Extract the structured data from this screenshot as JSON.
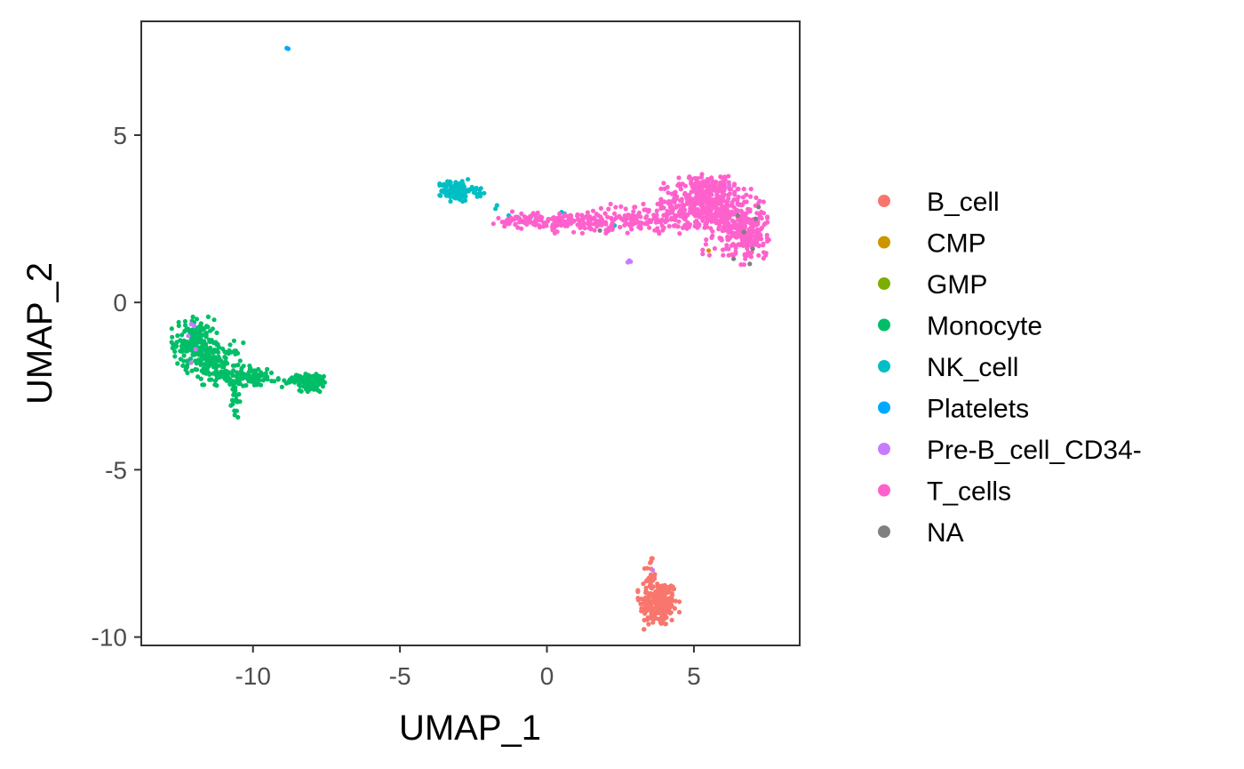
{
  "chart_data": {
    "type": "scatter",
    "title": "",
    "xlabel": "UMAP_1",
    "ylabel": "UMAP_2",
    "xlim": [
      -13.8,
      8.6
    ],
    "ylim": [
      -10.25,
      8.4
    ],
    "x_ticks": [
      -10,
      -5,
      0,
      5
    ],
    "x_tick_labels": [
      "-10",
      "-5",
      "0",
      "5"
    ],
    "y_ticks": [
      -10,
      -5,
      0,
      5
    ],
    "y_tick_labels": [
      "-10",
      "-5",
      "0",
      "5"
    ],
    "grid": false,
    "legend_position": "right",
    "series": [
      {
        "name": "B_cell",
        "color": "#F8766D",
        "clusters": [
          {
            "cx": 3.8,
            "cy": -9.0,
            "sx": 0.32,
            "sy": 0.35,
            "n": 220
          },
          {
            "cx": 3.5,
            "cy": -8.2,
            "sx": 0.1,
            "sy": 0.25,
            "n": 25
          }
        ]
      },
      {
        "name": "CMP",
        "color": "#CD9600",
        "points": [
          [
            5.5,
            1.55
          ],
          [
            6.65,
            2.15
          ],
          [
            6.7,
            2.25
          ]
        ]
      },
      {
        "name": "GMP",
        "color": "#7CAE00",
        "points": [
          [
            6.6,
            2.05
          ]
        ]
      },
      {
        "name": "Monocyte",
        "color": "#00BE67",
        "clusters": [
          {
            "cx": -12.0,
            "cy": -1.2,
            "sx": 0.35,
            "sy": 0.35,
            "n": 160
          },
          {
            "cx": -11.3,
            "cy": -1.8,
            "sx": 0.45,
            "sy": 0.3,
            "n": 130
          },
          {
            "cx": -10.4,
            "cy": -2.2,
            "sx": 0.4,
            "sy": 0.15,
            "n": 80
          },
          {
            "cx": -9.8,
            "cy": -2.25,
            "sx": 0.3,
            "sy": 0.1,
            "n": 30
          },
          {
            "cx": -8.0,
            "cy": -2.4,
            "sx": 0.2,
            "sy": 0.12,
            "n": 130
          },
          {
            "cx": -8.7,
            "cy": -2.35,
            "sx": 0.2,
            "sy": 0.08,
            "n": 20
          },
          {
            "cx": -10.6,
            "cy": -2.95,
            "sx": 0.07,
            "sy": 0.3,
            "n": 22
          }
        ]
      },
      {
        "name": "NK_cell",
        "color": "#00BFC4",
        "clusters": [
          {
            "cx": -3.1,
            "cy": 3.35,
            "sx": 0.25,
            "sy": 0.15,
            "n": 110
          },
          {
            "cx": -2.4,
            "cy": 3.3,
            "sx": 0.2,
            "sy": 0.08,
            "n": 15
          }
        ],
        "points": [
          [
            -1.7,
            2.9
          ],
          [
            -1.75,
            2.8
          ],
          [
            -1.3,
            2.6
          ],
          [
            -1.0,
            2.55
          ],
          [
            -0.55,
            2.55
          ],
          [
            0.5,
            2.7
          ],
          [
            0.6,
            2.65
          ],
          [
            2.3,
            2.3
          ]
        ]
      },
      {
        "name": "Platelets",
        "color": "#00A9FF",
        "points": [
          [
            -8.85,
            7.6
          ],
          [
            -8.8,
            7.58
          ]
        ]
      },
      {
        "name": "Pre-B_cell_CD34-",
        "color": "#C77CFF",
        "points": [
          [
            -12.1,
            -0.65
          ],
          [
            -12.0,
            -0.7
          ],
          [
            -11.95,
            -1.4
          ],
          [
            -12.2,
            -1.0
          ],
          [
            2.75,
            1.2
          ],
          [
            2.8,
            1.25
          ],
          [
            2.85,
            1.22
          ],
          [
            3.6,
            -8.0
          ],
          [
            6.2,
            3.5
          ],
          [
            -12.1,
            -1.8
          ]
        ]
      },
      {
        "name": "T_cells",
        "color": "#FF61CC",
        "clusters": [
          {
            "cx": 5.2,
            "cy": 3.0,
            "sx": 0.6,
            "sy": 0.35,
            "n": 320
          },
          {
            "cx": 6.4,
            "cy": 2.4,
            "sx": 0.5,
            "sy": 0.45,
            "n": 260
          },
          {
            "cx": 7.0,
            "cy": 1.9,
            "sx": 0.25,
            "sy": 0.35,
            "n": 90
          },
          {
            "cx": 5.6,
            "cy": 3.5,
            "sx": 0.35,
            "sy": 0.15,
            "n": 60
          },
          {
            "cx": 3.2,
            "cy": 2.5,
            "sx": 0.9,
            "sy": 0.2,
            "n": 130
          },
          {
            "cx": 1.1,
            "cy": 2.4,
            "sx": 0.7,
            "sy": 0.15,
            "n": 110
          },
          {
            "cx": -0.5,
            "cy": 2.45,
            "sx": 0.6,
            "sy": 0.12,
            "n": 70
          }
        ]
      },
      {
        "name": "NA",
        "color": "#808080",
        "points": [
          [
            6.35,
            1.3
          ],
          [
            6.9,
            1.15
          ],
          [
            7.1,
            2.5
          ],
          [
            7.2,
            2.85
          ],
          [
            6.5,
            2.6
          ],
          [
            7.0,
            1.6
          ],
          [
            1.8,
            2.15
          ],
          [
            6.7,
            2.1
          ]
        ]
      }
    ]
  }
}
